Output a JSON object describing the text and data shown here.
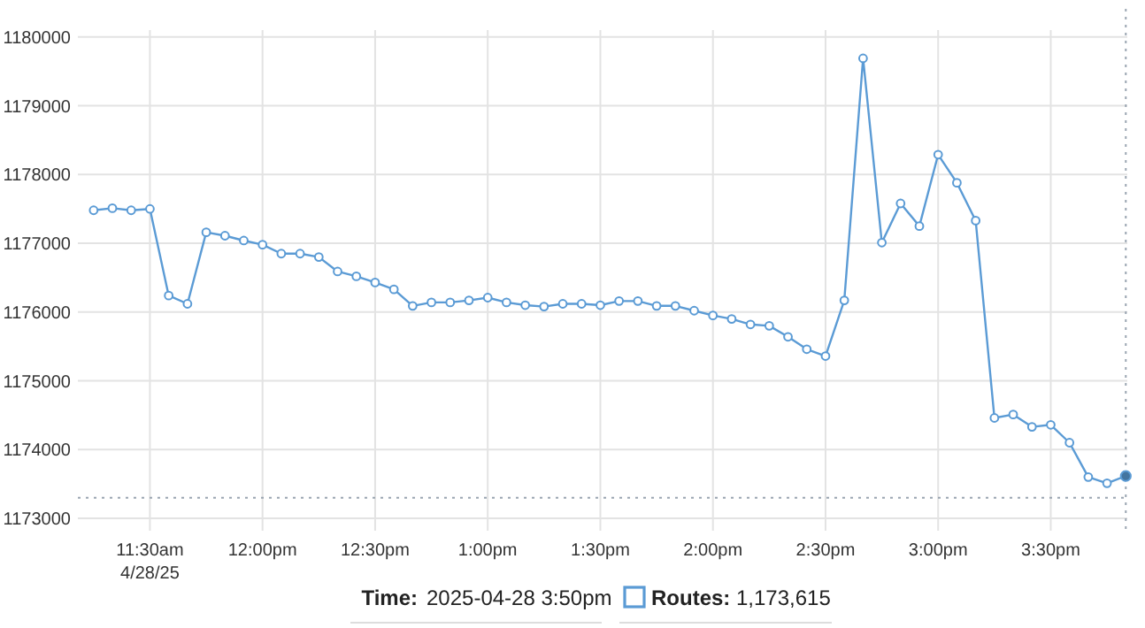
{
  "chart_data": {
    "type": "line",
    "x": [
      11.25,
      11.3333,
      11.4167,
      11.5,
      11.5833,
      11.6667,
      11.75,
      11.8333,
      11.9167,
      12,
      12.0833,
      12.1667,
      12.25,
      12.3333,
      12.4167,
      12.5,
      12.5833,
      12.6667,
      12.75,
      12.8333,
      12.9167,
      13,
      13.0833,
      13.1667,
      13.25,
      13.3333,
      13.4167,
      13.5,
      13.5833,
      13.6667,
      13.75,
      13.8333,
      13.9167,
      14,
      14.0833,
      14.1667,
      14.25,
      14.3333,
      14.4167,
      14.5,
      14.5833,
      14.6667,
      14.75,
      14.8333,
      14.9167,
      15,
      15.0833,
      15.1667,
      15.25,
      15.3333,
      15.4167,
      15.5,
      15.5833,
      15.6667,
      15.75,
      15.8333
    ],
    "series": [
      {
        "name": "Routes:",
        "color": "#5b9bd5",
        "values": [
          1177480,
          1177510,
          1177480,
          1177500,
          1176240,
          1176120,
          1177160,
          1177110,
          1177040,
          1176980,
          1176850,
          1176850,
          1176800,
          1176590,
          1176520,
          1176430,
          1176330,
          1176090,
          1176140,
          1176140,
          1176170,
          1176210,
          1176140,
          1176100,
          1176080,
          1176120,
          1176120,
          1176100,
          1176160,
          1176160,
          1176090,
          1176090,
          1176020,
          1175950,
          1175900,
          1175820,
          1175800,
          1175640,
          1175460,
          1175360,
          1176170,
          1179690,
          1177010,
          1177580,
          1177250,
          1178290,
          1177880,
          1177330,
          1174460,
          1174510,
          1174330,
          1174360,
          1174100,
          1173600,
          1173510,
          1173615
        ]
      }
    ],
    "xlim": [
      11.18,
      15.84
    ],
    "ylim": [
      1172820,
      1180410
    ],
    "xticks": [
      {
        "value": 11.5,
        "label": "11:30am\n4/28/25"
      },
      {
        "value": 12,
        "label": "12:00pm"
      },
      {
        "value": 12.5,
        "label": "12:30pm"
      },
      {
        "value": 13,
        "label": "1:00pm"
      },
      {
        "value": 13.5,
        "label": "1:30pm"
      },
      {
        "value": 14,
        "label": "2:00pm"
      },
      {
        "value": 14.5,
        "label": "2:30pm"
      },
      {
        "value": 15,
        "label": "3:00pm"
      },
      {
        "value": 15.5,
        "label": "3:30pm"
      }
    ],
    "yticks": [
      1173000,
      1174000,
      1175000,
      1176000,
      1177000,
      1178000,
      1179000,
      1180000
    ],
    "grid": true,
    "marker": "circle",
    "line_style": "solid",
    "legend": "bottom",
    "ref_lines": [
      {
        "axis": "y",
        "value": 1173300,
        "line_style": "dotted",
        "color": "#9aa5b1"
      },
      {
        "axis": "x",
        "value": 15.8333,
        "line_style": "dotted",
        "color": "#9aa5b1"
      }
    ],
    "annotations": [
      "Time:",
      "2025-04-28 3:50pm",
      "1,173,615"
    ]
  }
}
